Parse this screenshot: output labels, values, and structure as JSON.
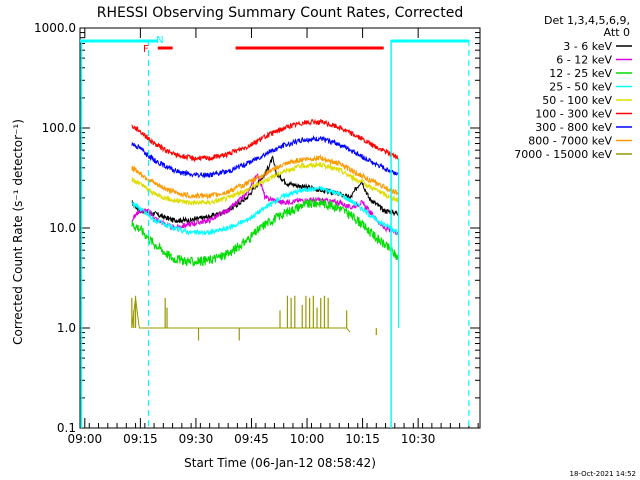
{
  "chart_data": {
    "type": "line",
    "title": "RHESSI Observing Summary Count Rates, Corrected",
    "xlabel": "Start Time (06-Jan-12 08:58:42)",
    "ylabel": "Corrected Count Rate (s⁻¹ detector⁻¹)",
    "yscale": "log",
    "ylim": [
      0.1,
      1000
    ],
    "xlim_minutes": [
      0,
      108
    ],
    "y_ticks": [
      "0.1",
      "1.0",
      "10.0",
      "100.0",
      "1000.0"
    ],
    "x_ticks": [
      {
        "label": "09:00",
        "min": 1.3
      },
      {
        "label": "09:15",
        "min": 16.3
      },
      {
        "label": "09:30",
        "min": 31.3
      },
      {
        "label": "09:45",
        "min": 46.3
      },
      {
        "label": "10:00",
        "min": 61.3
      },
      {
        "label": "10:15",
        "min": 76.3
      },
      {
        "label": "10:30",
        "min": 91.3
      }
    ],
    "legend": {
      "header": "Det 1,3,4,5,6,9,",
      "header2": "Att 0",
      "placement": "right"
    },
    "series": [
      {
        "name": "3 - 6 keV",
        "color": "#000000",
        "points": [
          [
            14,
            18
          ],
          [
            16,
            15
          ],
          [
            20,
            14
          ],
          [
            25,
            12
          ],
          [
            30,
            12
          ],
          [
            35,
            13
          ],
          [
            40,
            15
          ],
          [
            45,
            20
          ],
          [
            50,
            35
          ],
          [
            52,
            50
          ],
          [
            53,
            35
          ],
          [
            56,
            28
          ],
          [
            60,
            26
          ],
          [
            65,
            24
          ],
          [
            70,
            22
          ],
          [
            73,
            20
          ],
          [
            76,
            30
          ],
          [
            78,
            20
          ],
          [
            82,
            15
          ],
          [
            86,
            14
          ]
        ]
      },
      {
        "name": "6 - 12 keV",
        "color": "#dd00dd",
        "points": [
          [
            14,
            12
          ],
          [
            16,
            15
          ],
          [
            18,
            15
          ],
          [
            21,
            12
          ],
          [
            25,
            10
          ],
          [
            30,
            11
          ],
          [
            35,
            12
          ],
          [
            40,
            15
          ],
          [
            45,
            22
          ],
          [
            48,
            35
          ],
          [
            50,
            20
          ],
          [
            55,
            18
          ],
          [
            60,
            19
          ],
          [
            65,
            19
          ],
          [
            70,
            18
          ],
          [
            73,
            16
          ],
          [
            76,
            18
          ],
          [
            78,
            15
          ],
          [
            82,
            10
          ],
          [
            86,
            9
          ]
        ]
      },
      {
        "name": "12 - 25 keV",
        "color": "#00dd00",
        "points": [
          [
            14,
            11
          ],
          [
            16,
            10
          ],
          [
            20,
            7
          ],
          [
            25,
            5
          ],
          [
            30,
            4.6
          ],
          [
            35,
            4.8
          ],
          [
            40,
            5.5
          ],
          [
            45,
            7.5
          ],
          [
            50,
            11
          ],
          [
            55,
            14
          ],
          [
            60,
            17
          ],
          [
            65,
            18
          ],
          [
            70,
            16
          ],
          [
            75,
            12
          ],
          [
            80,
            8
          ],
          [
            84,
            6
          ],
          [
            86,
            5
          ]
        ]
      },
      {
        "name": "25 - 50 keV",
        "color": "#00ffff",
        "points": [
          [
            14,
            18
          ],
          [
            16,
            16
          ],
          [
            20,
            12
          ],
          [
            25,
            10
          ],
          [
            30,
            9
          ],
          [
            35,
            9
          ],
          [
            40,
            10
          ],
          [
            45,
            12
          ],
          [
            50,
            16
          ],
          [
            55,
            21
          ],
          [
            60,
            24
          ],
          [
            65,
            25
          ],
          [
            70,
            22
          ],
          [
            75,
            17
          ],
          [
            80,
            12
          ],
          [
            84,
            10
          ],
          [
            86,
            9
          ]
        ]
      },
      {
        "name": "50 - 100 keV",
        "color": "#dddd00",
        "points": [
          [
            14,
            30
          ],
          [
            16,
            28
          ],
          [
            20,
            22
          ],
          [
            25,
            19
          ],
          [
            30,
            18
          ],
          [
            35,
            18
          ],
          [
            40,
            20
          ],
          [
            45,
            24
          ],
          [
            50,
            30
          ],
          [
            55,
            37
          ],
          [
            60,
            42
          ],
          [
            65,
            43
          ],
          [
            70,
            38
          ],
          [
            75,
            30
          ],
          [
            80,
            24
          ],
          [
            84,
            20
          ],
          [
            86,
            19
          ]
        ]
      },
      {
        "name": "100 - 300 keV",
        "color": "#ff0000",
        "points": [
          [
            14,
            105
          ],
          [
            16,
            95
          ],
          [
            20,
            70
          ],
          [
            25,
            55
          ],
          [
            30,
            50
          ],
          [
            35,
            50
          ],
          [
            40,
            55
          ],
          [
            45,
            65
          ],
          [
            50,
            82
          ],
          [
            55,
            100
          ],
          [
            60,
            113
          ],
          [
            65,
            115
          ],
          [
            70,
            102
          ],
          [
            75,
            82
          ],
          [
            80,
            64
          ],
          [
            84,
            55
          ],
          [
            86,
            50
          ]
        ]
      },
      {
        "name": "300 - 800 keV",
        "color": "#0000ff",
        "points": [
          [
            14,
            70
          ],
          [
            16,
            64
          ],
          [
            20,
            48
          ],
          [
            25,
            38
          ],
          [
            30,
            34
          ],
          [
            35,
            34
          ],
          [
            40,
            37
          ],
          [
            45,
            44
          ],
          [
            50,
            55
          ],
          [
            55,
            67
          ],
          [
            60,
            76
          ],
          [
            65,
            78
          ],
          [
            70,
            69
          ],
          [
            75,
            55
          ],
          [
            80,
            43
          ],
          [
            84,
            37
          ],
          [
            86,
            35
          ]
        ]
      },
      {
        "name": "800 - 7000 keV",
        "color": "#ff9900",
        "points": [
          [
            14,
            40
          ],
          [
            16,
            36
          ],
          [
            20,
            28
          ],
          [
            25,
            23
          ],
          [
            30,
            21
          ],
          [
            35,
            21
          ],
          [
            40,
            23
          ],
          [
            45,
            28
          ],
          [
            50,
            35
          ],
          [
            55,
            43
          ],
          [
            60,
            49
          ],
          [
            65,
            50
          ],
          [
            70,
            44
          ],
          [
            75,
            35
          ],
          [
            80,
            28
          ],
          [
            84,
            24
          ],
          [
            86,
            22
          ]
        ]
      },
      {
        "name": "7000 - 15000 keV",
        "color": "#999900",
        "points": [
          [
            14,
            1.0
          ],
          [
            15,
            2
          ],
          [
            16,
            1.0
          ],
          [
            18,
            1.0
          ],
          [
            20,
            1.0
          ],
          [
            22,
            1.0
          ],
          [
            54,
            1.0
          ],
          [
            64,
            1.0
          ],
          [
            68,
            1.0
          ],
          [
            72,
            1.0
          ],
          [
            73,
            0.9
          ]
        ]
      }
    ],
    "spikes_7000": [
      [
        14,
        2.0
      ],
      [
        14.5,
        1.5
      ],
      [
        15,
        2.1
      ],
      [
        23,
        2.0
      ],
      [
        23.5,
        1.6
      ],
      [
        32,
        0.75
      ],
      [
        43,
        0.75
      ],
      [
        54,
        1.5
      ],
      [
        56,
        2.1
      ],
      [
        57,
        2.0
      ],
      [
        58,
        2.1
      ],
      [
        60,
        1.7
      ],
      [
        61,
        2.1
      ],
      [
        62,
        2.0
      ],
      [
        63,
        2.1
      ],
      [
        64,
        1.6
      ],
      [
        65,
        2.0
      ],
      [
        66,
        2.1
      ],
      [
        67,
        2.0
      ],
      [
        72,
        1.5
      ],
      [
        80,
        0.85
      ]
    ],
    "flags": {
      "night_label": "N",
      "flare_label": "F",
      "night_segments": [
        [
          0,
          21
        ],
        [
          84,
          105
        ]
      ],
      "flare_segments": [
        [
          21,
          25
        ],
        [
          42,
          82
        ]
      ],
      "night_color": "#00ffff",
      "flare_color": "#ff0000"
    },
    "markers": {
      "saa_dashed": [
        18.5,
        105
      ],
      "solid_cyan": [
        0.4,
        84
      ],
      "gap_spike": [
        86
      ]
    },
    "footer_date": "18-Oct-2021 14:52"
  }
}
